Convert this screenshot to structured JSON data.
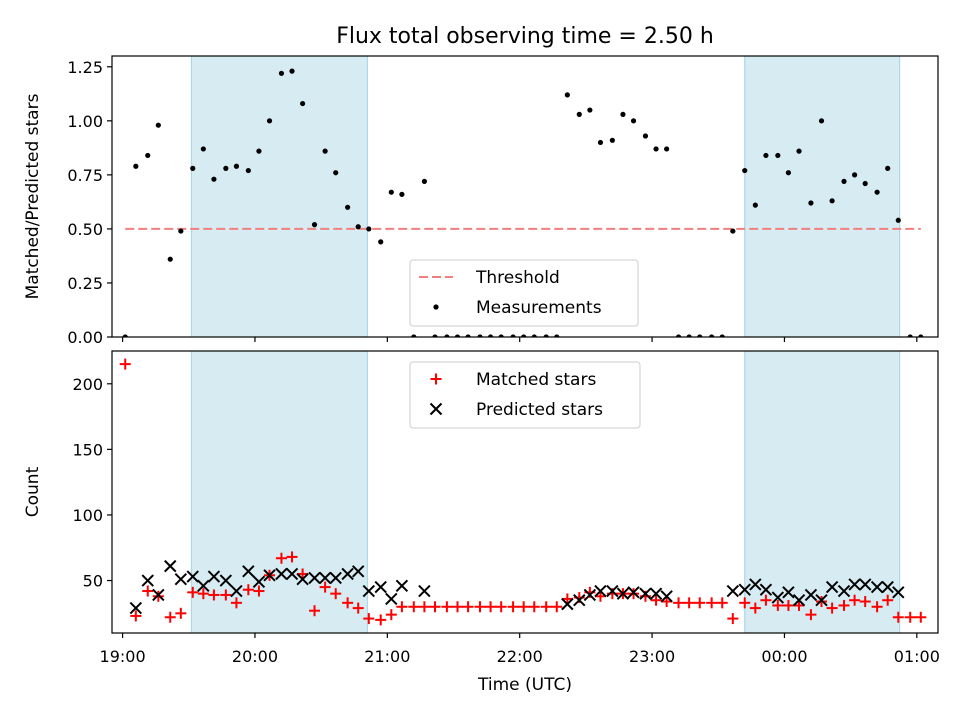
{
  "figure": {
    "title": "Flux total observing time = 2.50 h",
    "xlabel": "Time (UTC)"
  },
  "colors": {
    "shade": "#add8e6",
    "threshold": "#f08080",
    "measurement": "#000000",
    "matched": "#ff0000",
    "predicted": "#000000"
  },
  "chart_data": [
    {
      "type": "scatter",
      "panel": "top",
      "ylabel": "Matched/Predicted stars",
      "xlim": [
        18.92,
        25.16
      ],
      "ylim": [
        0,
        1.3
      ],
      "yticks": [
        0.0,
        0.25,
        0.5,
        0.75,
        1.0,
        1.25
      ],
      "ytick_labels": [
        "0.00",
        "0.25",
        "0.50",
        "0.75",
        "1.00",
        "1.25"
      ],
      "xticks": [
        19,
        20,
        21,
        22,
        23,
        24,
        25
      ],
      "shaded_intervals": [
        [
          19.52,
          20.85
        ],
        [
          23.7,
          24.87
        ]
      ],
      "threshold": {
        "value": 0.5,
        "x_range": [
          19.02,
          25.03
        ],
        "label": "Threshold"
      },
      "legend": {
        "position": "lower-center",
        "entries": [
          "Threshold",
          "Measurements"
        ]
      },
      "series": [
        {
          "name": "Measurements",
          "points": [
            [
              19.02,
              0.0
            ],
            [
              19.1,
              0.79
            ],
            [
              19.19,
              0.84
            ],
            [
              19.27,
              0.98
            ],
            [
              19.36,
              0.36
            ],
            [
              19.44,
              0.49
            ],
            [
              19.53,
              0.78
            ],
            [
              19.61,
              0.87
            ],
            [
              19.69,
              0.73
            ],
            [
              19.78,
              0.78
            ],
            [
              19.86,
              0.79
            ],
            [
              19.95,
              0.77
            ],
            [
              20.03,
              0.86
            ],
            [
              20.11,
              1.0
            ],
            [
              20.2,
              1.22
            ],
            [
              20.28,
              1.23
            ],
            [
              20.36,
              1.08
            ],
            [
              20.45,
              0.52
            ],
            [
              20.53,
              0.86
            ],
            [
              20.61,
              0.76
            ],
            [
              20.7,
              0.6
            ],
            [
              20.78,
              0.51
            ],
            [
              20.86,
              0.5
            ],
            [
              20.95,
              0.44
            ],
            [
              21.03,
              0.67
            ],
            [
              21.11,
              0.66
            ],
            [
              21.2,
              0.0
            ],
            [
              21.28,
              0.72
            ],
            [
              21.36,
              0.0
            ],
            [
              21.45,
              0.0
            ],
            [
              21.53,
              0.0
            ],
            [
              21.61,
              0.0
            ],
            [
              21.7,
              0.0
            ],
            [
              21.78,
              0.0
            ],
            [
              21.86,
              0.0
            ],
            [
              21.95,
              0.0
            ],
            [
              22.03,
              0.0
            ],
            [
              22.11,
              0.0
            ],
            [
              22.2,
              0.0
            ],
            [
              22.28,
              0.0
            ],
            [
              22.36,
              1.12
            ],
            [
              22.45,
              1.03
            ],
            [
              22.53,
              1.05
            ],
            [
              22.61,
              0.9
            ],
            [
              22.7,
              0.91
            ],
            [
              22.78,
              1.03
            ],
            [
              22.86,
              1.0
            ],
            [
              22.95,
              0.93
            ],
            [
              23.03,
              0.87
            ],
            [
              23.11,
              0.87
            ],
            [
              23.2,
              0.0
            ],
            [
              23.28,
              0.0
            ],
            [
              23.36,
              0.0
            ],
            [
              23.45,
              0.0
            ],
            [
              23.53,
              0.0
            ],
            [
              23.61,
              0.49
            ],
            [
              23.7,
              0.77
            ],
            [
              23.78,
              0.61
            ],
            [
              23.86,
              0.84
            ],
            [
              23.95,
              0.84
            ],
            [
              24.03,
              0.76
            ],
            [
              24.11,
              0.86
            ],
            [
              24.2,
              0.62
            ],
            [
              24.28,
              1.0
            ],
            [
              24.36,
              0.63
            ],
            [
              24.45,
              0.72
            ],
            [
              24.53,
              0.75
            ],
            [
              24.61,
              0.71
            ],
            [
              24.7,
              0.67
            ],
            [
              24.78,
              0.78
            ],
            [
              24.86,
              0.54
            ],
            [
              24.95,
              0.0
            ],
            [
              25.03,
              0.0
            ]
          ]
        }
      ]
    },
    {
      "type": "scatter",
      "panel": "bottom",
      "ylabel": "Count",
      "xlabel": "Time (UTC)",
      "xlim": [
        18.92,
        25.16
      ],
      "ylim": [
        10,
        225
      ],
      "yticks": [
        50,
        100,
        150,
        200
      ],
      "ytick_labels": [
        "50",
        "100",
        "150",
        "200"
      ],
      "xticks": [
        19,
        20,
        21,
        22,
        23,
        24,
        25
      ],
      "xtick_labels": [
        "19:00",
        "20:00",
        "21:00",
        "22:00",
        "23:00",
        "00:00",
        "01:00"
      ],
      "shaded_intervals": [
        [
          19.52,
          20.85
        ],
        [
          23.7,
          24.87
        ]
      ],
      "legend": {
        "position": "upper-center",
        "entries": [
          "Matched stars",
          "Predicted stars"
        ]
      },
      "series": [
        {
          "name": "Matched stars",
          "marker": "plus",
          "points": [
            [
              19.02,
              215
            ],
            [
              19.1,
              23
            ],
            [
              19.19,
              42
            ],
            [
              19.27,
              38
            ],
            [
              19.36,
              22
            ],
            [
              19.44,
              25
            ],
            [
              19.53,
              41
            ],
            [
              19.61,
              40
            ],
            [
              19.69,
              39
            ],
            [
              19.78,
              39
            ],
            [
              19.86,
              33
            ],
            [
              19.95,
              43
            ],
            [
              20.03,
              42
            ],
            [
              20.11,
              54
            ],
            [
              20.2,
              67
            ],
            [
              20.28,
              68
            ],
            [
              20.36,
              55
            ],
            [
              20.45,
              27
            ],
            [
              20.53,
              45
            ],
            [
              20.61,
              40
            ],
            [
              20.7,
              33
            ],
            [
              20.78,
              29
            ],
            [
              20.86,
              21
            ],
            [
              20.95,
              20
            ],
            [
              21.03,
              24
            ],
            [
              21.11,
              30
            ],
            [
              21.2,
              30
            ],
            [
              21.28,
              30
            ],
            [
              21.36,
              30
            ],
            [
              21.45,
              30
            ],
            [
              21.53,
              30
            ],
            [
              21.61,
              30
            ],
            [
              21.7,
              30
            ],
            [
              21.78,
              30
            ],
            [
              21.86,
              30
            ],
            [
              21.95,
              30
            ],
            [
              22.03,
              30
            ],
            [
              22.11,
              30
            ],
            [
              22.2,
              30
            ],
            [
              22.28,
              30
            ],
            [
              22.36,
              36
            ],
            [
              22.45,
              37
            ],
            [
              22.53,
              41
            ],
            [
              22.61,
              38
            ],
            [
              22.7,
              40
            ],
            [
              22.78,
              40
            ],
            [
              22.86,
              40
            ],
            [
              22.95,
              38
            ],
            [
              23.03,
              35
            ],
            [
              23.11,
              34
            ],
            [
              23.2,
              33
            ],
            [
              23.28,
              33
            ],
            [
              23.36,
              33
            ],
            [
              23.45,
              33
            ],
            [
              23.53,
              33
            ],
            [
              23.61,
              21
            ],
            [
              23.7,
              33
            ],
            [
              23.78,
              29
            ],
            [
              23.86,
              35
            ],
            [
              23.95,
              31
            ],
            [
              24.03,
              31
            ],
            [
              24.11,
              31
            ],
            [
              24.2,
              24
            ],
            [
              24.28,
              34
            ],
            [
              24.36,
              29
            ],
            [
              24.45,
              31
            ],
            [
              24.53,
              35
            ],
            [
              24.61,
              34
            ],
            [
              24.7,
              30
            ],
            [
              24.78,
              35
            ],
            [
              24.86,
              22
            ],
            [
              24.95,
              22
            ],
            [
              25.03,
              22
            ]
          ]
        },
        {
          "name": "Predicted stars",
          "marker": "x",
          "points": [
            [
              19.1,
              29
            ],
            [
              19.19,
              50
            ],
            [
              19.27,
              39
            ],
            [
              19.36,
              61
            ],
            [
              19.44,
              51
            ],
            [
              19.53,
              53
            ],
            [
              19.61,
              46
            ],
            [
              19.69,
              53
            ],
            [
              19.78,
              50
            ],
            [
              19.86,
              42
            ],
            [
              19.95,
              57
            ],
            [
              20.03,
              49
            ],
            [
              20.11,
              54
            ],
            [
              20.2,
              55
            ],
            [
              20.28,
              55
            ],
            [
              20.36,
              51
            ],
            [
              20.45,
              52
            ],
            [
              20.53,
              52
            ],
            [
              20.61,
              52
            ],
            [
              20.7,
              55
            ],
            [
              20.78,
              57
            ],
            [
              20.86,
              42
            ],
            [
              20.95,
              45
            ],
            [
              21.03,
              36
            ],
            [
              21.11,
              46
            ],
            [
              21.28,
              42
            ],
            [
              22.36,
              32
            ],
            [
              22.45,
              35
            ],
            [
              22.53,
              39
            ],
            [
              22.61,
              42
            ],
            [
              22.7,
              42
            ],
            [
              22.78,
              40
            ],
            [
              22.86,
              41
            ],
            [
              22.95,
              40
            ],
            [
              23.03,
              40
            ],
            [
              23.11,
              38
            ],
            [
              23.61,
              42
            ],
            [
              23.7,
              43
            ],
            [
              23.78,
              47
            ],
            [
              23.86,
              43
            ],
            [
              23.95,
              37
            ],
            [
              24.03,
              41
            ],
            [
              24.11,
              35
            ],
            [
              24.2,
              39
            ],
            [
              24.28,
              35
            ],
            [
              24.36,
              45
            ],
            [
              24.45,
              42
            ],
            [
              24.53,
              47
            ],
            [
              24.61,
              47
            ],
            [
              24.7,
              45
            ],
            [
              24.78,
              45
            ],
            [
              24.86,
              41
            ]
          ]
        }
      ]
    }
  ]
}
